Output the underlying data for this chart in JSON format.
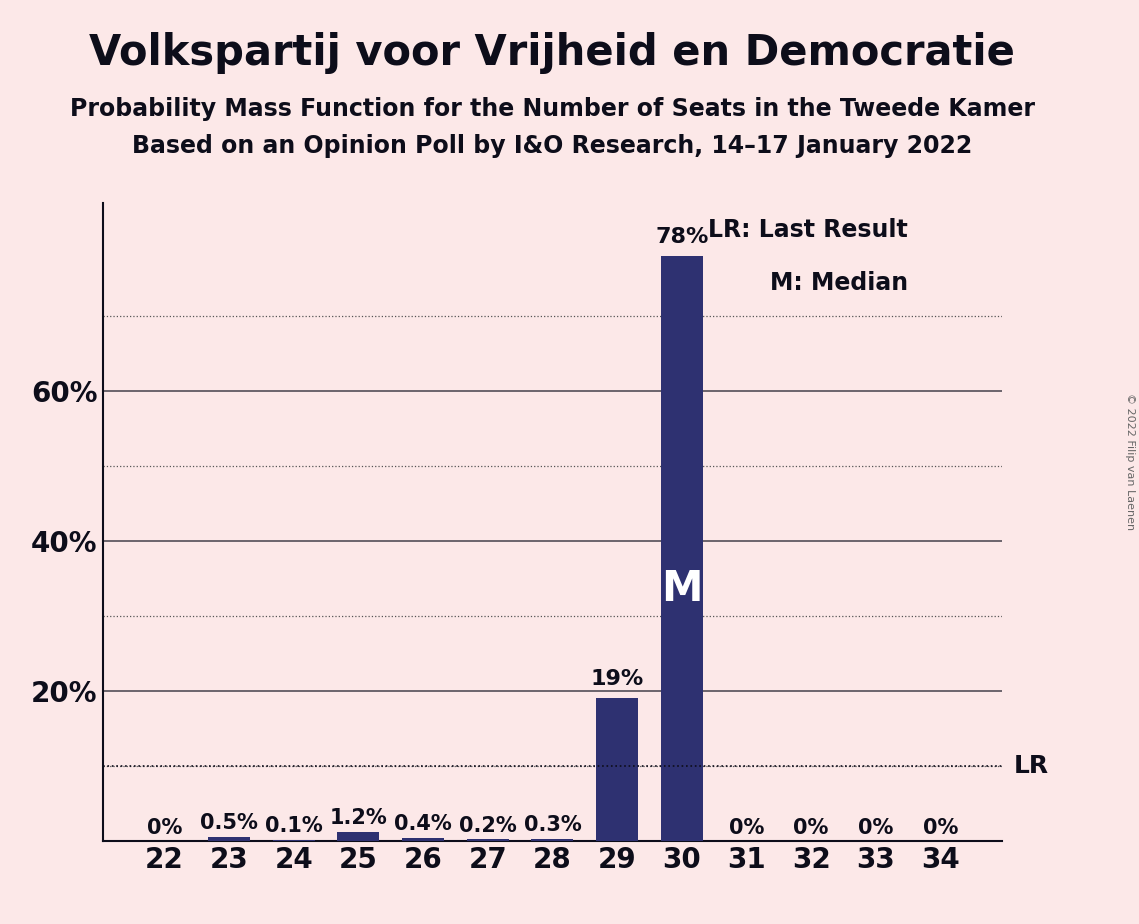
{
  "title": "Volkspartij voor Vrijheid en Democratie",
  "subtitle1": "Probability Mass Function for the Number of Seats in the Tweede Kamer",
  "subtitle2": "Based on an Opinion Poll by I&O Research, 14–17 January 2022",
  "copyright": "© 2022 Filip van Laenen",
  "categories": [
    22,
    23,
    24,
    25,
    26,
    27,
    28,
    29,
    30,
    31,
    32,
    33,
    34
  ],
  "values": [
    0.0,
    0.5,
    0.1,
    1.2,
    0.4,
    0.2,
    0.3,
    19.0,
    78.0,
    0.0,
    0.0,
    0.0,
    0.0
  ],
  "labels": [
    "0%",
    "0.5%",
    "0.1%",
    "1.2%",
    "0.4%",
    "0.2%",
    "0.3%",
    "19%",
    "78%",
    "0%",
    "0%",
    "0%",
    "0%"
  ],
  "bar_color": "#2e3171",
  "background_color": "#fce8e8",
  "ylim": [
    0,
    85
  ],
  "solid_lines": [
    20,
    40,
    60
  ],
  "dotted_lines": [
    10,
    30,
    50,
    70
  ],
  "ytick_positions": [
    20,
    40,
    60
  ],
  "ytick_labels": [
    "20%",
    "40%",
    "60%"
  ],
  "lr_value": 10.0,
  "lr_label": "LR",
  "lr_legend": "LR: Last Result",
  "m_legend": "M: Median",
  "median_seat": 30,
  "median_label": "M",
  "title_fontsize": 30,
  "subtitle_fontsize": 17,
  "tick_fontsize": 20,
  "label_fontsize": 15,
  "legend_fontsize": 17,
  "median_fontsize": 30,
  "text_color": "#0d0d1a",
  "grid_solid_color": "#0d0d1a",
  "grid_dotted_color": "#555555",
  "lr_line_color": "#0d0d1a"
}
